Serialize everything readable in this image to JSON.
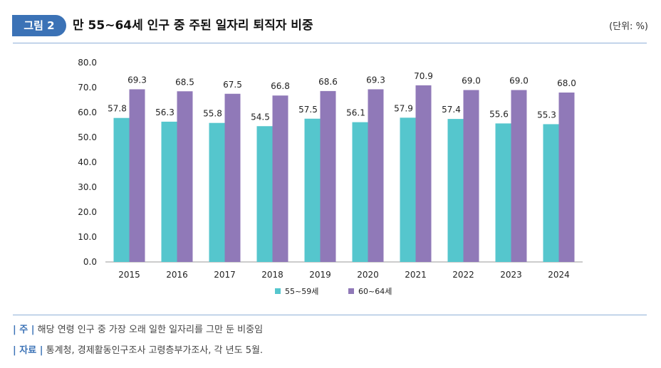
{
  "header": {
    "badge": "그림 2",
    "title": "만 55~64세 인구 중 주된 일자리 퇴직자 비중",
    "unit": "(단위: %)"
  },
  "notes": {
    "note_tag": "| 주 |",
    "note_text": "해당 연령 인구 중 가장 오래 일한 일자리를 그만 둔 비중임",
    "source_tag": "| 자료 |",
    "source_text": "통계청, 경제활동인구조사 고령층부가조사, 각 년도 5월."
  },
  "colors": {
    "series1": "#55c6cd",
    "series2": "#9079b8",
    "accent": "#3b72b6"
  },
  "chart_data": {
    "type": "bar",
    "categories": [
      "2015",
      "2016",
      "2017",
      "2018",
      "2019",
      "2020",
      "2021",
      "2022",
      "2023",
      "2024"
    ],
    "series": [
      {
        "name": "55~59세",
        "values": [
          57.8,
          56.3,
          55.8,
          54.5,
          57.5,
          56.1,
          57.9,
          57.4,
          55.6,
          55.3
        ]
      },
      {
        "name": "60~64세",
        "values": [
          69.3,
          68.5,
          67.5,
          66.8,
          68.6,
          69.3,
          70.9,
          69.0,
          69.0,
          68.0
        ]
      }
    ],
    "ylim": [
      0,
      80
    ],
    "yticks": [
      "0.0",
      "10.0",
      "20.0",
      "30.0",
      "40.0",
      "50.0",
      "60.0",
      "70.0",
      "80.0"
    ],
    "grid": false,
    "legend": "bottom-center",
    "data_labels": true
  }
}
